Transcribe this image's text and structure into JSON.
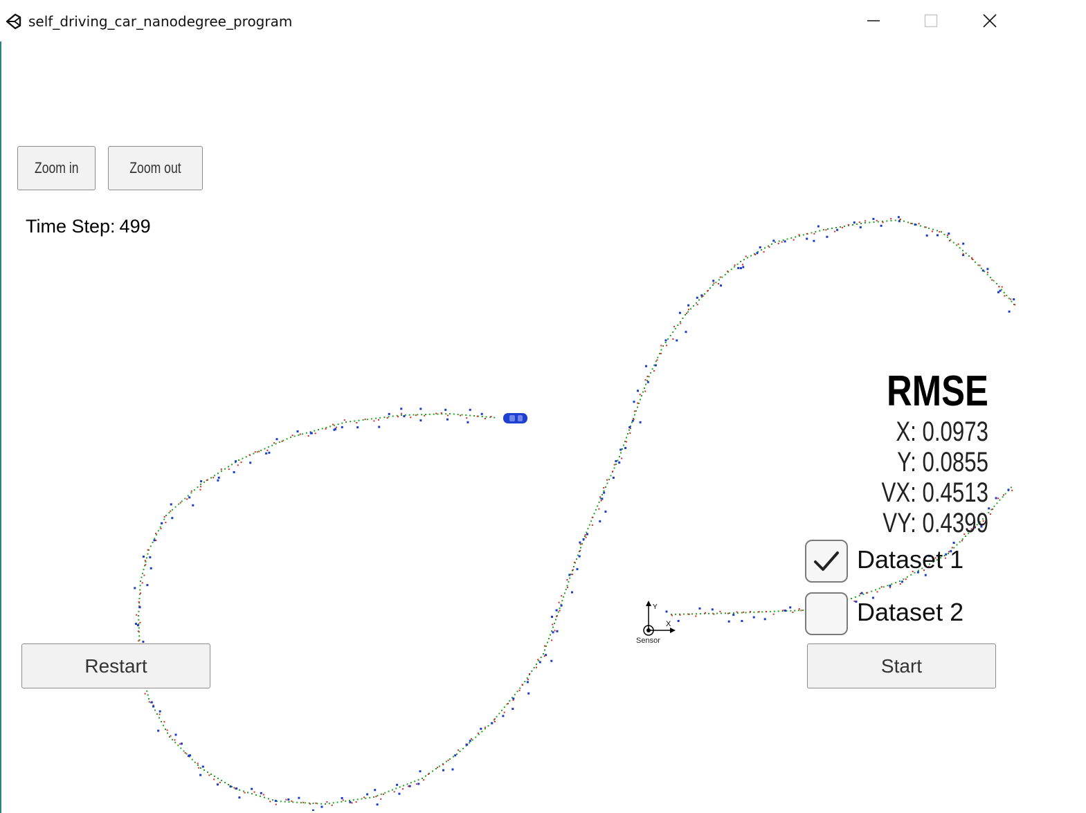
{
  "window": {
    "title": "self_driving_car_nanodegree_program",
    "icons": {
      "app": "unity-logo-icon",
      "minimize": "minimize-icon",
      "maximize": "maximize-icon",
      "close": "close-icon"
    }
  },
  "controls": {
    "zoom_in": "Zoom in",
    "zoom_out": "Zoom out",
    "restart": "Restart",
    "start": "Start"
  },
  "time_step": {
    "label": "Time Step:",
    "value": "499"
  },
  "rmse": {
    "title": "RMSE",
    "x": "X: 0.0973",
    "y": "Y: 0.0855",
    "vx": "VX: 0.4513",
    "vy": "VY: 0.4399"
  },
  "datasets": [
    {
      "label": "Dataset 1",
      "checked": true
    },
    {
      "label": "Dataset 2",
      "checked": false
    }
  ],
  "sensor": {
    "label": "Sensor",
    "x_axis": "X",
    "y_axis": "Y"
  },
  "colors": {
    "ground_truth": "#1aa31a",
    "lidar": "#e02020",
    "radar": "#1a3cc8",
    "car": "#1f3fd0",
    "window_edge": "#2f7f86"
  }
}
